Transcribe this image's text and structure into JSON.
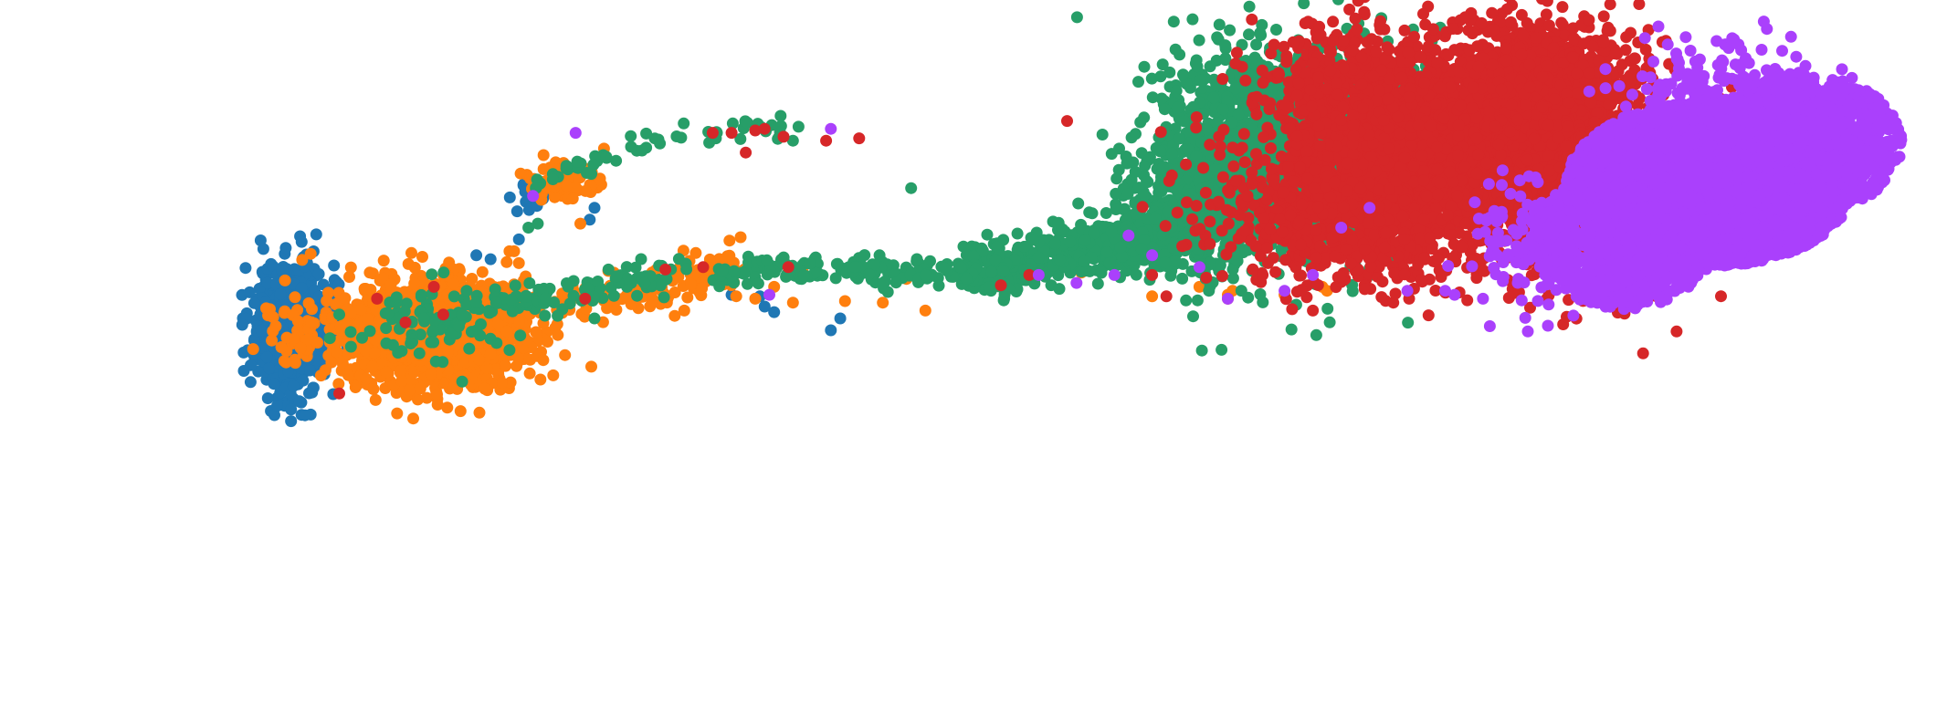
{
  "chart_data": {
    "type": "scatter",
    "title": "",
    "xlabel": "",
    "ylabel": "",
    "axes_visible": false,
    "grid": false,
    "legend": "none",
    "xlim": [
      -8.5,
      11.5
    ],
    "ylim": [
      -4.5,
      4.0
    ],
    "marker": "filled-circle",
    "series": [
      {
        "color": "#1f77b4",
        "blobs": [
          {
            "cx": -5.7,
            "cy": 0.05,
            "sx": 0.2,
            "sy": 0.4,
            "n": 700,
            "shape": "gauss"
          },
          {
            "cx": -3.15,
            "cy": 1.8,
            "sx": 0.1,
            "sy": 0.08,
            "n": 25,
            "shape": "gauss"
          }
        ],
        "points": [
          [
            -5.55,
            0.35
          ],
          [
            -5.45,
            0.2
          ],
          [
            -5.5,
            -0.25
          ],
          [
            -3.05,
            1.9
          ],
          [
            -3.2,
            1.72
          ],
          [
            -2.9,
            1.85
          ],
          [
            -3.3,
            1.2
          ],
          [
            -3.6,
            0.95
          ],
          [
            -3.75,
            1.0
          ],
          [
            -3.95,
            0.75
          ],
          [
            -2.55,
            1.45
          ],
          [
            -2.5,
            1.6
          ],
          [
            0.1,
            0.2
          ],
          [
            0.0,
            0.05
          ],
          [
            -0.7,
            0.35
          ],
          [
            -0.75,
            0.48
          ],
          [
            -0.6,
            0.28
          ],
          [
            -1.05,
            0.5
          ]
        ]
      },
      {
        "color": "#ff7f0e",
        "blobs": [
          {
            "cx": -4.2,
            "cy": 0.0,
            "sx": 0.48,
            "sy": 0.32,
            "n": 1700,
            "shape": "gauss"
          },
          {
            "cx": -5.55,
            "cy": 0.05,
            "sx": 0.18,
            "sy": 0.33,
            "n": 45,
            "shape": "gauss"
          },
          {
            "cx": -2.85,
            "cy": 1.95,
            "sx": 0.18,
            "sy": 0.12,
            "n": 80,
            "shape": "gauss"
          }
        ],
        "paths": [
          {
            "points": [
              [
                -3.9,
                0.05
              ],
              [
                -3.0,
                0.35
              ],
              [
                -2.0,
                0.55
              ],
              [
                -1.4,
                0.75
              ],
              [
                -0.95,
                0.85
              ]
            ],
            "n": 170,
            "spread": 0.14
          }
        ],
        "points": [
          [
            -2.65,
            1.4
          ],
          [
            -3.4,
            1.05
          ],
          [
            -3.3,
            0.9
          ],
          [
            -3.35,
            1.05
          ],
          [
            -2.4,
            2.35
          ],
          [
            -0.4,
            0.4
          ],
          [
            -0.6,
            0.6
          ],
          [
            -0.8,
            0.45
          ],
          [
            0.15,
            0.42
          ],
          [
            0.55,
            0.4
          ],
          [
            1.0,
            0.3
          ],
          [
            3.4,
            0.48
          ],
          [
            3.9,
            0.6
          ],
          [
            4.2,
            0.5
          ],
          [
            4.25,
            0.55
          ],
          [
            4.8,
            0.5
          ],
          [
            5.2,
            0.6
          ],
          [
            5.25,
            0.55
          ],
          [
            -1.9,
            0.5
          ],
          [
            -1.55,
            0.3
          ],
          [
            -0.3,
            0.8
          ],
          [
            0.8,
            0.7
          ],
          [
            2.25,
            0.85
          ],
          [
            2.65,
            0.78
          ]
        ]
      },
      {
        "color": "#279e68",
        "blobs": [
          {
            "cx": 4.65,
            "cy": 2.25,
            "sx": 0.6,
            "sy": 0.62,
            "n": 1700,
            "shape": "gauss"
          },
          {
            "cx": 5.55,
            "cy": 2.8,
            "sx": 0.42,
            "sy": 0.42,
            "n": 500,
            "shape": "gauss"
          },
          {
            "cx": 3.8,
            "cy": 1.5,
            "sx": 0.35,
            "sy": 0.4,
            "n": 400,
            "shape": "gauss"
          },
          {
            "cx": 6.3,
            "cy": 2.6,
            "sx": 0.4,
            "sy": 0.4,
            "n": 160,
            "shape": "gauss"
          },
          {
            "cx": -4.3,
            "cy": 0.1,
            "sx": 0.4,
            "sy": 0.22,
            "n": 90,
            "shape": "gauss"
          }
        ],
        "paths": [
          {
            "points": [
              [
                1.5,
                0.8
              ],
              [
                2.3,
                0.95
              ],
              [
                3.0,
                1.15
              ],
              [
                3.6,
                1.4
              ],
              [
                4.2,
                1.8
              ]
            ],
            "n": 700,
            "spread": 0.18
          },
          {
            "points": [
              [
                -1.3,
                0.75
              ],
              [
                -0.3,
                0.85
              ],
              [
                0.6,
                0.8
              ],
              [
                1.5,
                0.8
              ]
            ],
            "n": 170,
            "spread": 0.08
          },
          {
            "points": [
              [
                -3.2,
                1.8
              ],
              [
                -2.6,
                2.15
              ],
              [
                -1.9,
                2.45
              ],
              [
                -1.0,
                2.55
              ],
              [
                -0.3,
                2.6
              ]
            ],
            "n": 60,
            "spread": 0.06
          },
          {
            "points": [
              [
                -3.85,
                0.3
              ],
              [
                -2.7,
                0.55
              ],
              [
                -1.5,
                0.8
              ]
            ],
            "n": 110,
            "spread": 0.12
          }
        ],
        "points": [
          [
            -5.3,
            -0.05
          ],
          [
            -5.2,
            0.25
          ],
          [
            -3.9,
            -0.6
          ],
          [
            -3.4,
            -0.2
          ],
          [
            -2.5,
            0.2
          ],
          [
            -3.1,
            1.4
          ],
          [
            -3.2,
            1.35
          ],
          [
            -0.4,
            2.45
          ],
          [
            0.85,
            1.85
          ],
          [
            0.55,
            0.65
          ],
          [
            1.0,
            0.75
          ],
          [
            4.0,
            0.55
          ],
          [
            2.95,
            0.9
          ]
        ]
      },
      {
        "color": "#d62728",
        "blobs": [
          {
            "cx": 6.8,
            "cy": 2.5,
            "sx": 0.8,
            "sy": 0.6,
            "n": 2400,
            "shape": "gauss"
          },
          {
            "cx": 5.6,
            "cy": 1.5,
            "sx": 0.7,
            "sy": 0.45,
            "n": 900,
            "shape": "gauss"
          },
          {
            "cx": 7.6,
            "cy": 3.1,
            "sx": 0.6,
            "sy": 0.45,
            "n": 600,
            "shape": "gauss"
          },
          {
            "cx": 5.4,
            "cy": 3.0,
            "sx": 0.45,
            "sy": 0.5,
            "n": 350,
            "shape": "gauss"
          },
          {
            "cx": 8.0,
            "cy": 1.3,
            "sx": 0.55,
            "sy": 0.45,
            "n": 350,
            "shape": "gauss"
          }
        ],
        "points": [
          [
            -1.25,
            2.55
          ],
          [
            -1.05,
            2.55
          ],
          [
            -0.8,
            2.58
          ],
          [
            -0.05,
            2.45
          ],
          [
            0.3,
            2.48
          ],
          [
            -0.7,
            2.6
          ],
          [
            -0.5,
            2.5
          ],
          [
            -0.9,
            2.3
          ],
          [
            -1.35,
            0.85
          ],
          [
            -1.75,
            0.82
          ],
          [
            -0.45,
            0.85
          ],
          [
            -2.6,
            0.45
          ],
          [
            -5.2,
            -0.75
          ],
          [
            -4.5,
            0.15
          ],
          [
            -4.8,
            0.45
          ],
          [
            -4.2,
            0.6
          ],
          [
            2.5,
            2.7
          ],
          [
            2.1,
            0.75
          ],
          [
            1.8,
            0.62
          ],
          [
            3.4,
            0.75
          ],
          [
            4.2,
            0.45
          ],
          [
            5.1,
            0.3
          ],
          [
            3.55,
            0.48
          ],
          [
            -4.1,
            0.25
          ]
        ]
      },
      {
        "color": "#aa40fc",
        "blobs": [
          {
            "cx": 9.3,
            "cy": 1.9,
            "sx": 0.95,
            "sy": 0.65,
            "n": 6000,
            "shape": "disc"
          },
          {
            "cx": 10.3,
            "cy": 2.4,
            "sx": 0.65,
            "sy": 0.55,
            "n": 1000,
            "shape": "disc"
          },
          {
            "cx": 8.4,
            "cy": 1.2,
            "sx": 0.6,
            "sy": 0.55,
            "n": 1000,
            "shape": "disc"
          },
          {
            "cx": 7.5,
            "cy": 1.2,
            "sx": 0.4,
            "sy": 0.4,
            "n": 160,
            "shape": "gauss"
          },
          {
            "cx": 9.4,
            "cy": 3.05,
            "sx": 0.55,
            "sy": 0.3,
            "n": 220,
            "shape": "gauss"
          }
        ],
        "points": [
          [
            -0.65,
            0.5
          ],
          [
            0.0,
            2.6
          ],
          [
            -3.15,
            1.75
          ],
          [
            -2.7,
            2.55
          ],
          [
            3.15,
            1.25
          ],
          [
            4.2,
            0.45
          ],
          [
            4.8,
            0.55
          ],
          [
            5.1,
            0.75
          ],
          [
            5.4,
            1.35
          ],
          [
            6.1,
            0.55
          ],
          [
            6.6,
            0.5
          ],
          [
            5.7,
            1.6
          ],
          [
            2.2,
            0.75
          ],
          [
            2.6,
            0.65
          ],
          [
            3.0,
            0.75
          ],
          [
            3.4,
            1.0
          ],
          [
            3.9,
            0.85
          ],
          [
            6.9,
            0.45
          ],
          [
            6.5,
            0.55
          ]
        ]
      }
    ]
  }
}
